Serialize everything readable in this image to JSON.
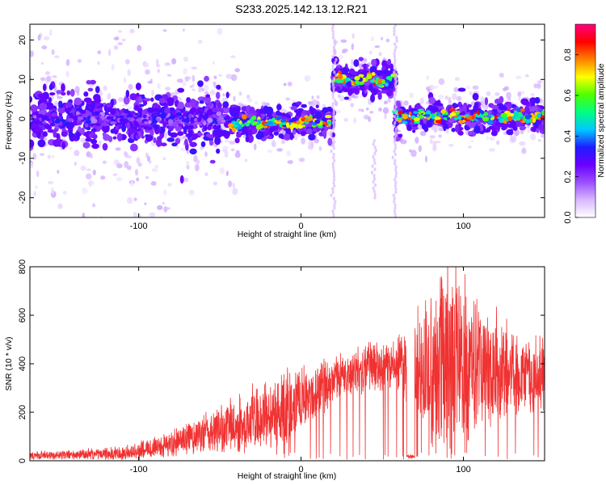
{
  "title": "S233.2025.142.13.12.R21",
  "chart_data": [
    {
      "type": "heatmap",
      "xlabel": "Height of straight line (km)",
      "ylabel": "Frequency (Hz)",
      "xlim": [
        -167,
        150
      ],
      "ylim": [
        -25,
        24
      ],
      "xticks": [
        -100,
        0,
        100
      ],
      "yticks": [
        -20,
        -10,
        0,
        10,
        20
      ],
      "colorbar": {
        "label": "Normalized spectral amplitude",
        "range": [
          0,
          0.95
        ],
        "ticks": [
          0,
          0.2,
          0.4,
          0.6,
          0.8
        ],
        "colors": [
          "#ffffff",
          "#d8b8ff",
          "#9b50ff",
          "#6a00ff",
          "#1e1eff",
          "#00c8ff",
          "#00ff80",
          "#50ff00",
          "#ffff00",
          "#ff8000",
          "#ff0000",
          "#ff0080"
        ]
      },
      "ridge": {
        "segments": [
          {
            "x": [
              -167,
              -45
            ],
            "frequency": 0,
            "peak_amplitude": 0.35
          },
          {
            "x": [
              -45,
              20
            ],
            "frequency": -1,
            "peak_amplitude": 0.85
          },
          {
            "x": [
              20,
              58
            ],
            "frequency": 10,
            "peak_amplitude": 0.9
          },
          {
            "x": [
              58,
              150
            ],
            "frequency": 0.5,
            "peak_amplitude": 0.9
          }
        ]
      }
    },
    {
      "type": "line",
      "xlabel": "Height of straight line (km)",
      "ylabel": "SNR (10 * v/v)",
      "xlim": [
        -167,
        150
      ],
      "ylim": [
        0,
        800
      ],
      "xticks": [
        -100,
        0,
        100
      ],
      "yticks": [
        0,
        200,
        400,
        600,
        800
      ],
      "color": "#f03232",
      "envelope": {
        "x": [
          -167,
          -140,
          -110,
          -95,
          -80,
          -60,
          -40,
          -20,
          -10,
          0,
          10,
          20,
          30,
          40,
          50,
          60,
          70,
          80,
          90,
          100,
          110,
          120,
          130,
          140,
          150
        ],
        "mean": [
          18,
          20,
          25,
          35,
          60,
          90,
          120,
          150,
          180,
          230,
          270,
          310,
          340,
          360,
          370,
          380,
          330,
          300,
          360,
          350,
          330,
          330,
          320,
          320,
          330
        ],
        "peak": [
          35,
          40,
          55,
          80,
          120,
          180,
          240,
          290,
          330,
          380,
          400,
          420,
          440,
          470,
          480,
          500,
          560,
          620,
          800,
          700,
          650,
          550,
          520,
          480,
          500
        ]
      }
    }
  ]
}
